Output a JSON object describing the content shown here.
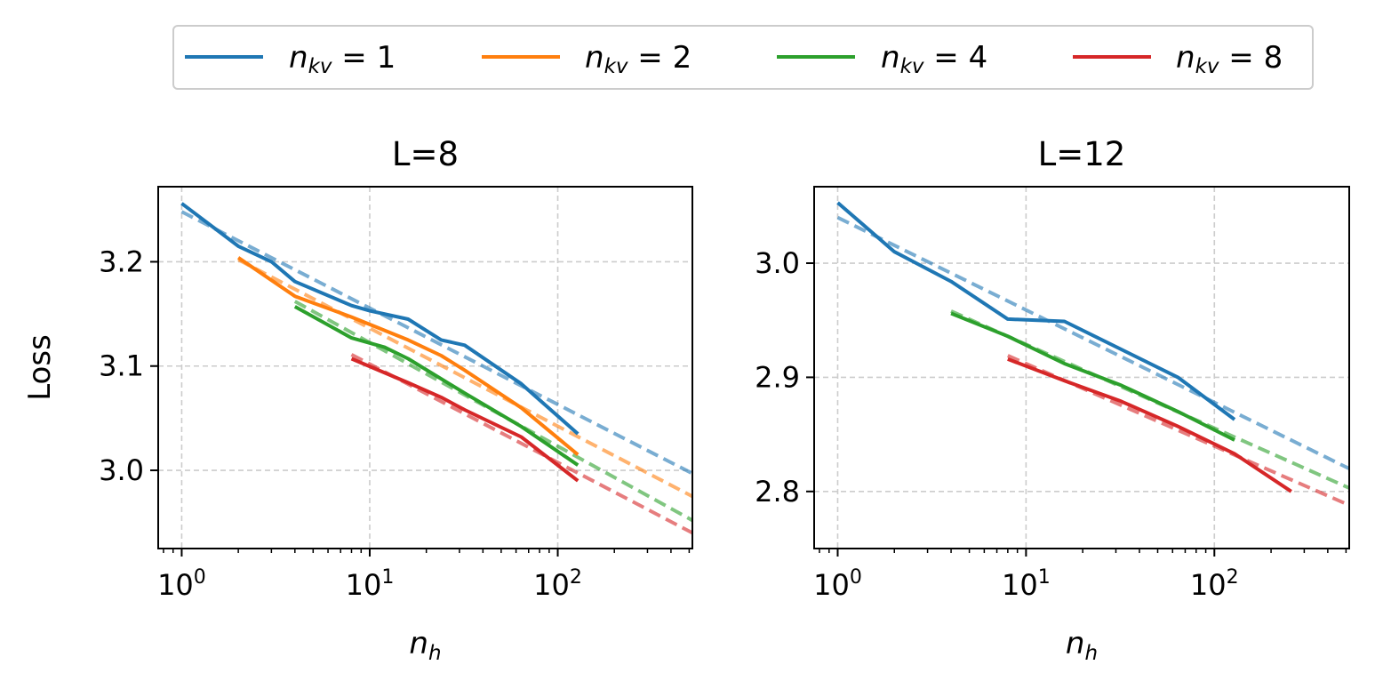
{
  "legend": {
    "entries": [
      {
        "label": "n_kv = 1",
        "sym": "n",
        "sub": "kv",
        "rhs": " = 1",
        "color": "#1f77b4"
      },
      {
        "label": "n_kv = 2",
        "sym": "n",
        "sub": "kv",
        "rhs": " = 2",
        "color": "#ff7f0e"
      },
      {
        "label": "n_kv = 4",
        "sym": "n",
        "sub": "kv",
        "rhs": " = 4",
        "color": "#2ca02c"
      },
      {
        "label": "n_kv = 8",
        "sym": "n",
        "sub": "kv",
        "rhs": " = 8",
        "color": "#d62728"
      }
    ],
    "placement": "top-center"
  },
  "chart_data": [
    {
      "type": "line",
      "title": "L=8",
      "xlabel": "n_h",
      "ylabel": "Loss",
      "xscale": "log",
      "xlim": [
        0.75,
        520
      ],
      "ylim": [
        2.925,
        3.272
      ],
      "xticks": [
        1,
        10,
        100
      ],
      "xtick_labels": [
        "10^0",
        "10^1",
        "10^2"
      ],
      "yticks": [
        3.0,
        3.1,
        3.2
      ],
      "ytick_labels": [
        "3.0",
        "3.1",
        "3.2"
      ],
      "grid": true,
      "series": [
        {
          "name": "n_kv = 1",
          "color": "#1f77b4",
          "x": [
            1,
            2,
            3,
            4,
            8,
            10,
            16,
            24,
            32,
            64,
            128
          ],
          "y": [
            3.256,
            3.215,
            3.2,
            3.181,
            3.158,
            3.153,
            3.145,
            3.125,
            3.12,
            3.083,
            3.035
          ],
          "fit": {
            "x": [
              1,
              520
            ],
            "y": [
              3.248,
              2.997
            ]
          }
        },
        {
          "name": "n_kv = 2",
          "color": "#ff7f0e",
          "x": [
            2,
            4,
            8,
            16,
            24,
            32,
            64,
            128
          ],
          "y": [
            3.204,
            3.167,
            3.147,
            3.125,
            3.11,
            3.096,
            3.06,
            3.015
          ],
          "fit": {
            "x": [
              2,
              520
            ],
            "y": [
              3.202,
              2.975
            ]
          }
        },
        {
          "name": "n_kv = 4",
          "color": "#2ca02c",
          "x": [
            4,
            8,
            12,
            16,
            32,
            64,
            128
          ],
          "y": [
            3.157,
            3.127,
            3.118,
            3.107,
            3.074,
            3.042,
            3.005
          ],
          "fit": {
            "x": [
              4,
              520
            ],
            "y": [
              3.162,
              2.952
            ]
          }
        },
        {
          "name": "n_kv = 8",
          "color": "#d62728",
          "x": [
            8,
            16,
            24,
            32,
            64,
            128
          ],
          "y": [
            3.107,
            3.084,
            3.07,
            3.058,
            3.032,
            2.99
          ],
          "fit": {
            "x": [
              8,
              520
            ],
            "y": [
              3.111,
              2.94
            ]
          }
        }
      ]
    },
    {
      "type": "line",
      "title": "L=12",
      "xlabel": "n_h",
      "ylabel": "",
      "xscale": "log",
      "xlim": [
        0.75,
        520
      ],
      "ylim": [
        2.75,
        3.067
      ],
      "xticks": [
        1,
        10,
        100
      ],
      "xtick_labels": [
        "10^0",
        "10^1",
        "10^2"
      ],
      "yticks": [
        2.8,
        2.9,
        3.0
      ],
      "ytick_labels": [
        "2.8",
        "2.9",
        "3.0"
      ],
      "grid": true,
      "series": [
        {
          "name": "n_kv = 1",
          "color": "#1f77b4",
          "x": [
            1,
            2,
            4,
            8,
            16,
            64,
            128
          ],
          "y": [
            3.053,
            3.01,
            2.984,
            2.951,
            2.949,
            2.9,
            2.863
          ],
          "fit": {
            "x": [
              1,
              520
            ],
            "y": [
              3.04,
              2.82
            ]
          }
        },
        {
          "name": "n_kv = 4",
          "color": "#2ca02c",
          "x": [
            4,
            8,
            16,
            32,
            64,
            128
          ],
          "y": [
            2.956,
            2.936,
            2.912,
            2.893,
            2.87,
            2.845
          ],
          "fit": {
            "x": [
              4,
              520
            ],
            "y": [
              2.958,
              2.803
            ]
          }
        },
        {
          "name": "n_kv = 8",
          "color": "#d62728",
          "x": [
            8,
            16,
            32,
            64,
            128,
            256
          ],
          "y": [
            2.916,
            2.897,
            2.879,
            2.857,
            2.833,
            2.8
          ],
          "fit": {
            "x": [
              8,
              520
            ],
            "y": [
              2.919,
              2.788
            ]
          }
        }
      ]
    }
  ]
}
